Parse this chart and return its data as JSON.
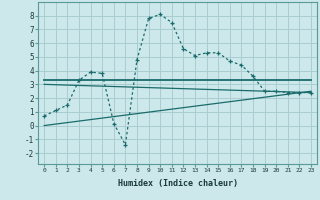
{
  "title": "",
  "xlabel": "Humidex (Indice chaleur)",
  "bg_color": "#cce8ea",
  "grid_color": "#a8cdd0",
  "line_color": "#1a6b6b",
  "xlim": [
    -0.5,
    23.5
  ],
  "ylim": [
    -2.8,
    9.0
  ],
  "xticks": [
    0,
    1,
    2,
    3,
    4,
    5,
    6,
    7,
    8,
    9,
    10,
    11,
    12,
    13,
    14,
    15,
    16,
    17,
    18,
    19,
    20,
    21,
    22,
    23
  ],
  "yticks": [
    -2,
    -1,
    0,
    1,
    2,
    3,
    4,
    5,
    6,
    7,
    8
  ],
  "line1_x": [
    0,
    1,
    2,
    3,
    4,
    5,
    6,
    7,
    8,
    9,
    10,
    11,
    12,
    13,
    14,
    15,
    16,
    17,
    18,
    19,
    20,
    21,
    22,
    23
  ],
  "line1_y": [
    0.7,
    1.1,
    1.5,
    3.3,
    3.9,
    3.8,
    0.15,
    -1.4,
    4.8,
    7.8,
    8.1,
    7.5,
    5.6,
    5.1,
    5.3,
    5.3,
    4.7,
    4.4,
    3.6,
    2.5,
    2.5,
    2.4,
    2.4,
    2.4
  ],
  "line2_x": [
    0,
    23
  ],
  "line2_y": [
    3.3,
    3.3
  ],
  "line3_x": [
    0,
    23
  ],
  "line3_y": [
    3.0,
    2.4
  ],
  "line4_x": [
    0,
    23
  ],
  "line4_y": [
    0.0,
    2.5
  ]
}
